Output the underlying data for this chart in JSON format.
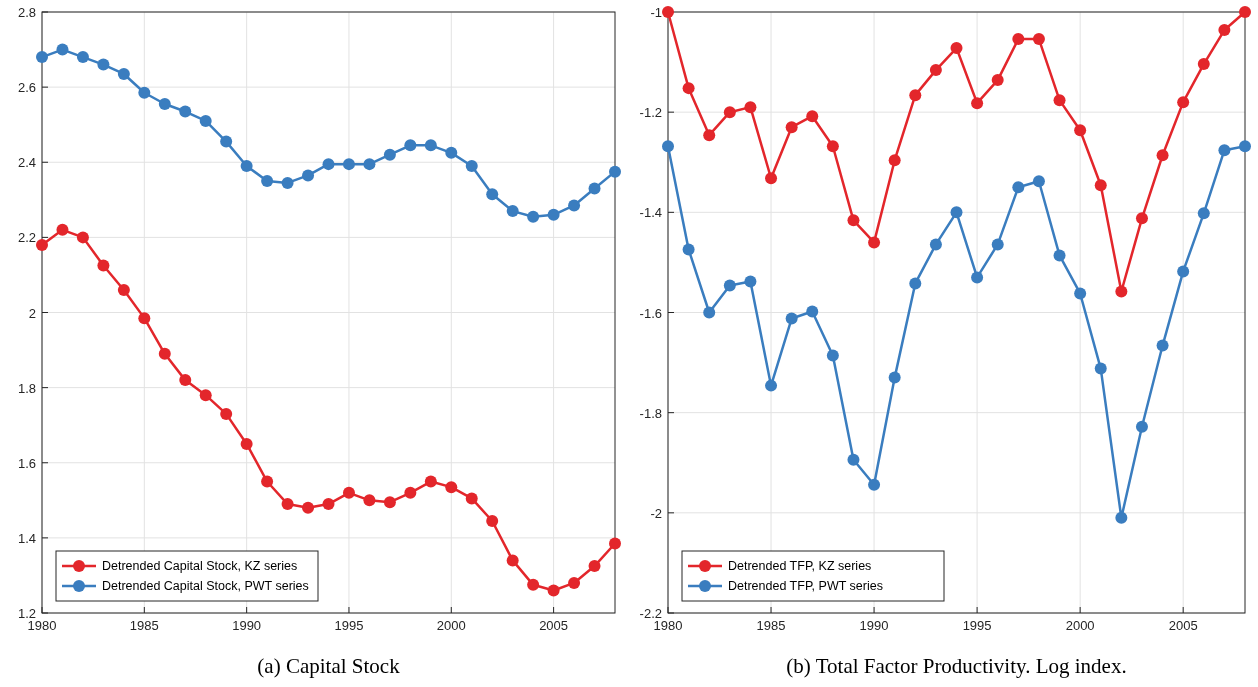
{
  "chart_data": [
    {
      "type": "line",
      "title": "(a) Capital Stock",
      "x": [
        1980,
        1981,
        1982,
        1983,
        1984,
        1985,
        1986,
        1987,
        1988,
        1989,
        1990,
        1991,
        1992,
        1993,
        1994,
        1995,
        1996,
        1997,
        1998,
        1999,
        2000,
        2001,
        2002,
        2003,
        2004,
        2005,
        2006,
        2007,
        2008
      ],
      "series": [
        {
          "name": "Detrended Capital Stock, KZ series",
          "color": "#e3262b",
          "values": [
            2.18,
            2.22,
            2.2,
            2.125,
            2.06,
            1.985,
            1.89,
            1.82,
            1.78,
            1.73,
            1.65,
            1.55,
            1.49,
            1.48,
            1.49,
            1.52,
            1.5,
            1.495,
            1.52,
            1.55,
            1.535,
            1.505,
            1.445,
            1.34,
            1.275,
            1.26,
            1.28,
            1.325,
            1.385
          ]
        },
        {
          "name": "Detrended Capital Stock, PWT series",
          "color": "#3a7dbf",
          "values": [
            2.68,
            2.7,
            2.68,
            2.66,
            2.635,
            2.585,
            2.555,
            2.535,
            2.51,
            2.455,
            2.39,
            2.35,
            2.345,
            2.365,
            2.395,
            2.395,
            2.395,
            2.42,
            2.445,
            2.445,
            2.425,
            2.39,
            2.315,
            2.27,
            2.255,
            2.26,
            2.285,
            2.33,
            2.375
          ]
        }
      ],
      "xlim": [
        1980,
        2008
      ],
      "xticks": [
        1980,
        1985,
        1990,
        1995,
        2000,
        2005
      ],
      "ylim": [
        1.2,
        2.8
      ],
      "yticks": [
        1.2,
        1.4,
        1.6,
        1.8,
        2,
        2.2,
        2.4,
        2.6,
        2.8
      ],
      "grid": true,
      "legend": "bottom left",
      "marker": "circle",
      "line_style": "solid"
    },
    {
      "type": "line",
      "title": "(b) Total Factor Productivity. Log index.",
      "x": [
        1980,
        1981,
        1982,
        1983,
        1984,
        1985,
        1986,
        1987,
        1988,
        1989,
        1990,
        1991,
        1992,
        1993,
        1994,
        1995,
        1996,
        1997,
        1998,
        1999,
        2000,
        2001,
        2002,
        2003,
        2004,
        2005,
        2006,
        2007,
        2008
      ],
      "series": [
        {
          "name": "Detrended TFP, KZ series",
          "color": "#e3262b",
          "values": [
            -1.0,
            -1.152,
            -1.246,
            -1.2,
            -1.19,
            -1.332,
            -1.23,
            -1.208,
            -1.268,
            -1.416,
            -1.46,
            -1.296,
            -1.166,
            -1.116,
            -1.072,
            -1.182,
            -1.136,
            -1.054,
            -1.054,
            -1.176,
            -1.236,
            -1.346,
            -1.558,
            -1.412,
            -1.286,
            -1.18,
            -1.104,
            -1.036,
            -1.0
          ]
        },
        {
          "name": "Detrended TFP, PWT series",
          "color": "#3a7dbf",
          "values": [
            -1.268,
            -1.474,
            -1.6,
            -1.546,
            -1.538,
            -1.746,
            -1.612,
            -1.598,
            -1.686,
            -1.894,
            -1.944,
            -1.73,
            -1.542,
            -1.464,
            -1.4,
            -1.53,
            -1.464,
            -1.35,
            -1.338,
            -1.486,
            -1.562,
            -1.712,
            -2.01,
            -1.828,
            -1.666,
            -1.518,
            -1.402,
            -1.276,
            -1.268
          ]
        }
      ],
      "xlim": [
        1980,
        2008
      ],
      "xticks": [
        1980,
        1985,
        1990,
        1995,
        2000,
        2005
      ],
      "ylim": [
        -2.2,
        -1
      ],
      "yticks": [
        -2.2,
        -2,
        -1.8,
        -1.6,
        -1.4,
        -1.2,
        -1
      ],
      "grid": true,
      "legend": "bottom left",
      "marker": "circle",
      "line_style": "solid"
    }
  ]
}
